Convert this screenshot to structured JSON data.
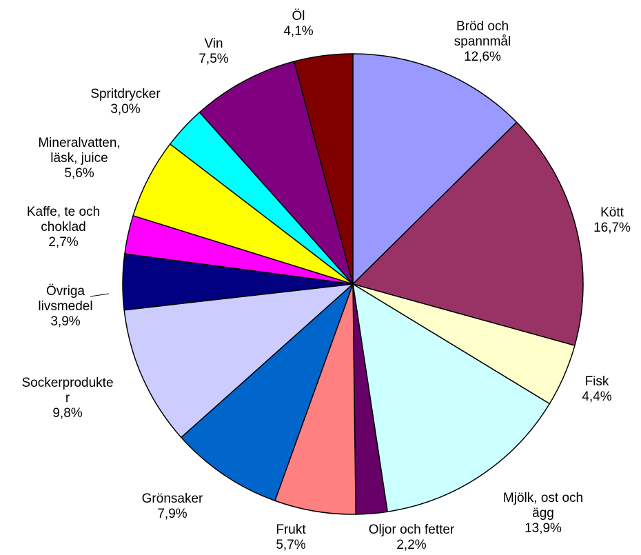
{
  "chart_data": {
    "type": "pie",
    "categories": [
      "Bröd och\nspannmål",
      "Kött",
      "Fisk",
      "Mjölk, ost och\nägg",
      "Oljor och fetter",
      "Frukt",
      "Grönsaker",
      "Sockerprodukte\nr",
      "Övriga\nlivsmedel",
      "Kaffe, te och\nchoklad",
      "Mineralvatten,\nläsk, juice",
      "Spritdrycker",
      "Vin",
      "Öl"
    ],
    "values": [
      12.6,
      16.7,
      4.4,
      13.9,
      2.2,
      5.7,
      7.9,
      9.8,
      3.9,
      2.7,
      5.6,
      3.0,
      7.5,
      4.1
    ],
    "value_labels": [
      "12,6%",
      "16,7%",
      "4,4%",
      "13,9%",
      "2,2%",
      "5,7%",
      "7,9%",
      "9,8%",
      "3,9%",
      "2,7%",
      "5,6%",
      "3,0%",
      "7,5%",
      "4,1%"
    ],
    "colors": [
      "#9999ff",
      "#993366",
      "#ffffcc",
      "#ccffff",
      "#660066",
      "#ff8080",
      "#0066cc",
      "#ccccff",
      "#000080",
      "#ff00ff",
      "#ffff00",
      "#00ffff",
      "#800080",
      "#800000"
    ]
  }
}
